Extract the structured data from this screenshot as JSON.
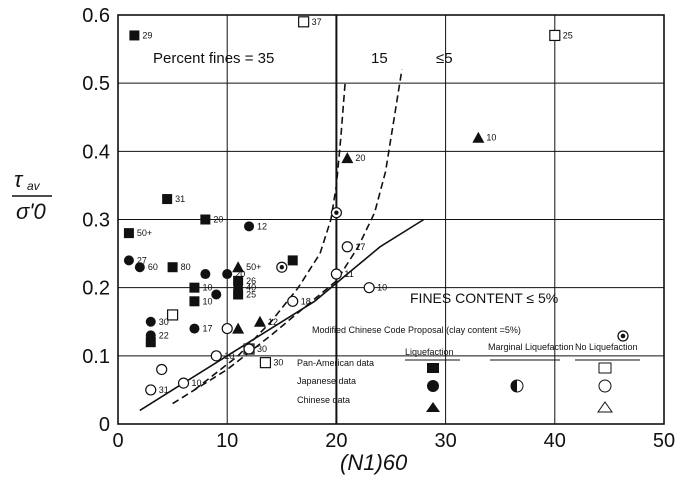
{
  "chart_data": {
    "type": "scatter",
    "xlabel": "(N1)60",
    "ylabel": "τav / σ'0",
    "xlim": [
      0,
      50
    ],
    "ylim": [
      0,
      0.6
    ],
    "x_ticks": [
      "0",
      "10",
      "20",
      "30",
      "40",
      "50"
    ],
    "y_ticks": [
      "0",
      "0.1",
      "0.2",
      "0.3",
      "0.4",
      "0.5",
      "0.6"
    ],
    "grid": true,
    "legend_position": "bottom-right",
    "curves": [
      {
        "label": "35",
        "style": "solid",
        "points": [
          [
            2,
            0.02
          ],
          [
            6,
            0.06
          ],
          [
            10,
            0.1
          ],
          [
            14,
            0.14
          ],
          [
            18,
            0.18
          ],
          [
            21,
            0.22
          ],
          [
            24,
            0.26
          ],
          [
            28,
            0.3
          ]
        ]
      },
      {
        "label": "15",
        "style": "dashed",
        "points": [
          [
            5,
            0.03
          ],
          [
            10,
            0.08
          ],
          [
            14,
            0.13
          ],
          [
            17,
            0.17
          ],
          [
            20,
            0.21
          ],
          [
            22,
            0.26
          ],
          [
            23.5,
            0.31
          ],
          [
            24.5,
            0.37
          ],
          [
            25.3,
            0.45
          ],
          [
            26,
            0.52
          ]
        ]
      },
      {
        "label": "≤5",
        "style": "dashed",
        "points": [
          [
            7,
            0.05
          ],
          [
            11,
            0.1
          ],
          [
            14,
            0.15
          ],
          [
            16.5,
            0.2
          ],
          [
            18.5,
            0.25
          ],
          [
            19.5,
            0.3
          ],
          [
            20,
            0.35
          ],
          [
            20.4,
            0.42
          ],
          [
            20.8,
            0.5
          ]
        ]
      }
    ],
    "annotations": {
      "percent_fines_label": "Percent fines = 35",
      "fines_15": "15",
      "fines_5": "≤5",
      "fines_content": "FINES CONTENT ≤ 5%",
      "modified_code": "Modified Chinese Code  Proposal (clay content =5%)"
    },
    "legend": {
      "col_liquefaction": "Liquefaction",
      "col_marginal": "Marginal Liquefaction",
      "col_none": "No Liquefaction",
      "row_panam": "Pan-American data",
      "row_japan": "Japanese data",
      "row_china": "Chinese data"
    },
    "series": [
      {
        "name": "Pan-American data / Liquefaction",
        "marker": "square-filled",
        "points": [
          {
            "x": 1.5,
            "y": 0.57,
            "label": "29"
          },
          {
            "x": 4.5,
            "y": 0.33,
            "label": "31"
          },
          {
            "x": 8,
            "y": 0.3,
            "label": "20"
          },
          {
            "x": 1,
            "y": 0.28,
            "label": "50+"
          },
          {
            "x": 5,
            "y": 0.23,
            "label": "80"
          },
          {
            "x": 7,
            "y": 0.2,
            "label": "10"
          },
          {
            "x": 7,
            "y": 0.18,
            "label": "10"
          },
          {
            "x": 11,
            "y": 0.21,
            "label": "26"
          },
          {
            "x": 11,
            "y": 0.19,
            "label": "25"
          },
          {
            "x": 16,
            "y": 0.24,
            "label": ""
          },
          {
            "x": 3,
            "y": 0.12,
            "label": ""
          }
        ]
      },
      {
        "name": "Pan-American data / No Liquefaction",
        "marker": "square-open",
        "points": [
          {
            "x": 17,
            "y": 0.59,
            "label": "37"
          },
          {
            "x": 40,
            "y": 0.57,
            "label": "25"
          },
          {
            "x": 5,
            "y": 0.16,
            "label": ""
          },
          {
            "x": 12,
            "y": 0.11,
            "label": "30"
          },
          {
            "x": 13.5,
            "y": 0.09,
            "label": "30"
          }
        ]
      },
      {
        "name": "Japanese data / Liquefaction",
        "marker": "circle-filled",
        "points": [
          {
            "x": 12,
            "y": 0.29,
            "label": "12"
          },
          {
            "x": 1,
            "y": 0.24,
            "label": "27"
          },
          {
            "x": 2,
            "y": 0.23,
            "label": "60"
          },
          {
            "x": 10,
            "y": 0.22,
            "label": "20"
          },
          {
            "x": 8,
            "y": 0.22,
            "label": ""
          },
          {
            "x": 11,
            "y": 0.2,
            "label": "40"
          },
          {
            "x": 9,
            "y": 0.19,
            "label": ""
          },
          {
            "x": 3,
            "y": 0.15,
            "label": "30"
          },
          {
            "x": 7,
            "y": 0.14,
            "label": "17"
          },
          {
            "x": 3,
            "y": 0.13,
            "label": "22"
          }
        ]
      },
      {
        "name": "Japanese data / No Liquefaction",
        "marker": "circle-open",
        "points": [
          {
            "x": 21,
            "y": 0.26,
            "label": "17"
          },
          {
            "x": 16,
            "y": 0.18,
            "label": "18"
          },
          {
            "x": 23,
            "y": 0.2,
            "label": "10"
          },
          {
            "x": 4,
            "y": 0.08,
            "label": ""
          },
          {
            "x": 6,
            "y": 0.06,
            "label": "10"
          },
          {
            "x": 9,
            "y": 0.1,
            "label": "10"
          },
          {
            "x": 12,
            "y": 0.11,
            "label": ""
          },
          {
            "x": 3,
            "y": 0.05,
            "label": "31"
          },
          {
            "x": 20,
            "y": 0.22,
            "label": "11"
          },
          {
            "x": 10,
            "y": 0.14,
            "label": ""
          }
        ]
      },
      {
        "name": "Chinese data / Liquefaction",
        "marker": "triangle-filled",
        "points": [
          {
            "x": 21,
            "y": 0.39,
            "label": "20"
          },
          {
            "x": 33,
            "y": 0.42,
            "label": "10"
          },
          {
            "x": 11,
            "y": 0.23,
            "label": "50+"
          },
          {
            "x": 13,
            "y": 0.15,
            "label": "12"
          },
          {
            "x": 11,
            "y": 0.14,
            "label": ""
          }
        ]
      }
    ],
    "proposal_points": [
      [
        20,
        0.31
      ],
      [
        15,
        0.23
      ]
    ]
  }
}
